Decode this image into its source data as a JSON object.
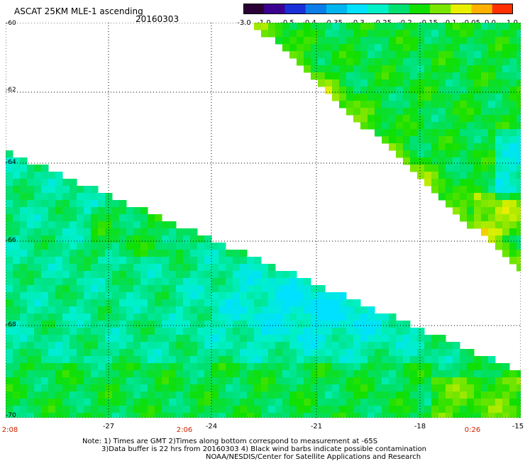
{
  "header": {
    "title": "ASCAT 25KM MLE-1 ascending",
    "date": "20160303"
  },
  "colorbar": {
    "labels": [
      "-3.0",
      "-1.0",
      "-0.5",
      "-0.4",
      "-0.35",
      "-0.3",
      "-0.25",
      "-0.2",
      "-0.15",
      "-0.1",
      "-0.05",
      "0.0",
      "1.0"
    ],
    "colors": [
      "#2a0035",
      "#3c0090",
      "#1a2fd8",
      "#0a7de8",
      "#00b4f0",
      "#00e2ff",
      "#00f0c8",
      "#00e070",
      "#10e000",
      "#7ae600",
      "#e8f000",
      "#ffb000",
      "#ff3000"
    ]
  },
  "map": {
    "y_labels": [
      "-60",
      "-62",
      "-64",
      "-66",
      "-68",
      "-70"
    ],
    "x_labels": [
      "-27",
      "-24",
      "-21",
      "-18",
      "-15"
    ],
    "time_labels": [
      "2:08",
      "2:06",
      "0:26"
    ],
    "grid": "dotted"
  },
  "footer": {
    "note1": "Note: 1) Times are GMT 2)Times along bottom correspond to measurement at -65S",
    "note2": "3)Data buffer is 22 hrs from 20160303 4) Black wind barbs indicate possible contamination",
    "credit": "NOAA/NESDIS/Center for Satellite Applications and Research"
  }
}
